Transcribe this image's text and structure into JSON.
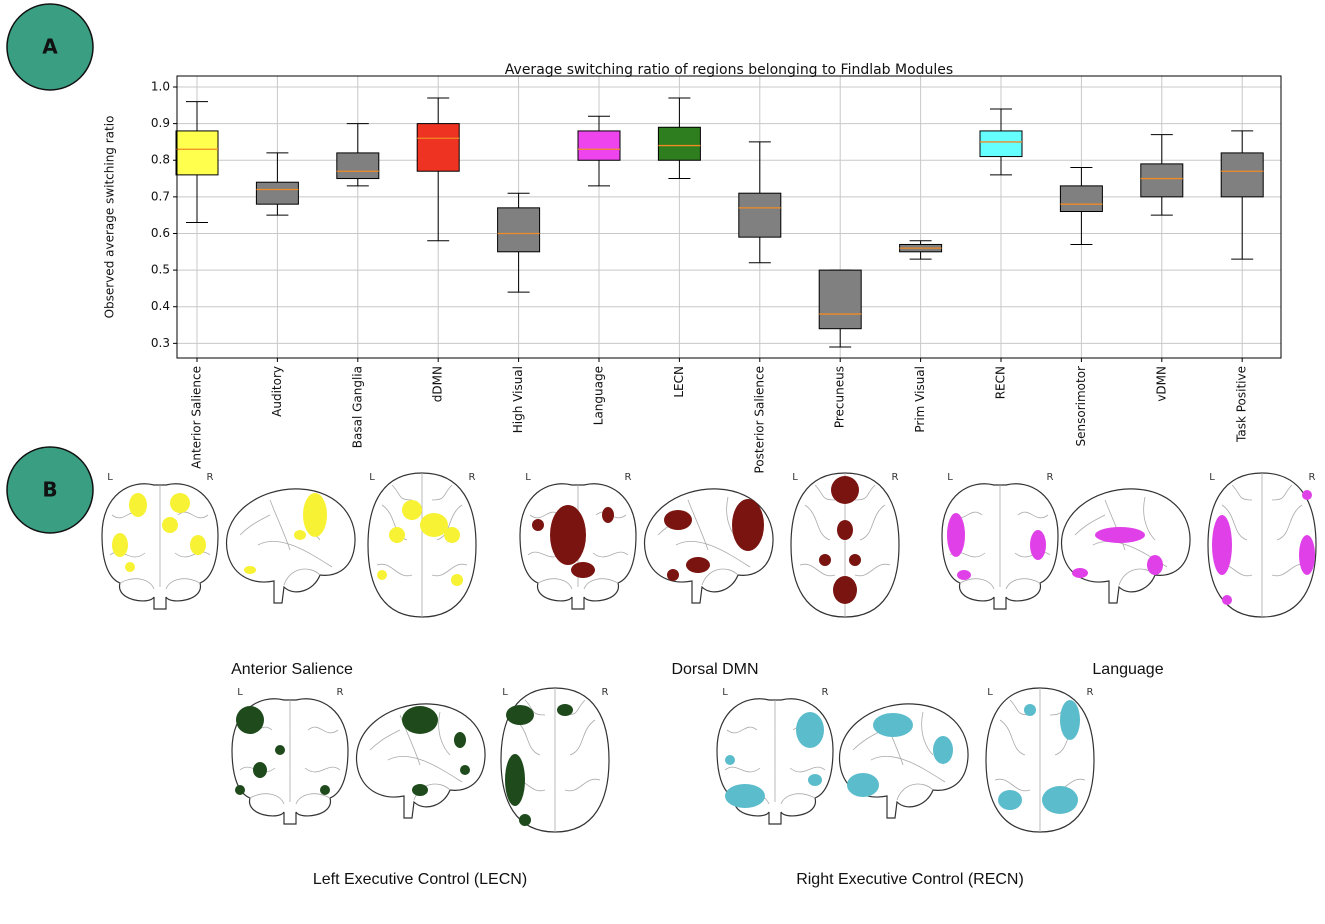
{
  "panel_labels": [
    "A",
    "B"
  ],
  "chart_data": {
    "type": "box",
    "title": "Average switching ratio of regions belonging to Findlab Modules",
    "y_label": "Observed average switching ratio",
    "categories": [
      "Anterior Salience",
      "Auditory",
      "Basal Ganglia",
      "dDMN",
      "High Visual",
      "Language",
      "LECN",
      "Posterior Salience",
      "Precuneus",
      "Prim Visual",
      "RECN",
      "Sensorimotor",
      "vDMN",
      "Task Positive"
    ],
    "low": [
      0.63,
      0.65,
      0.73,
      0.58,
      0.44,
      0.73,
      0.75,
      0.52,
      0.29,
      0.53,
      0.76,
      0.57,
      0.65,
      0.53
    ],
    "q1": [
      0.76,
      0.68,
      0.75,
      0.77,
      0.55,
      0.8,
      0.8,
      0.59,
      0.34,
      0.55,
      0.81,
      0.66,
      0.7,
      0.7
    ],
    "median": [
      0.83,
      0.72,
      0.77,
      0.86,
      0.6,
      0.83,
      0.84,
      0.67,
      0.38,
      0.56,
      0.85,
      0.68,
      0.75,
      0.77
    ],
    "q3": [
      0.88,
      0.74,
      0.82,
      0.9,
      0.67,
      0.88,
      0.89,
      0.71,
      0.5,
      0.57,
      0.88,
      0.73,
      0.79,
      0.82
    ],
    "high": [
      0.96,
      0.82,
      0.9,
      0.97,
      0.71,
      0.92,
      0.97,
      0.85,
      0.5,
      0.58,
      0.94,
      0.78,
      0.87,
      0.88
    ],
    "colors": [
      "#ffff4d",
      "#808080",
      "#808080",
      "#ee3322",
      "#808080",
      "#ee44ee",
      "#2e7d1e",
      "#808080",
      "#808080",
      "#808080",
      "#66ffff",
      "#808080",
      "#808080",
      "#808080"
    ],
    "median_color": "#f08a24",
    "ylim": [
      0.26,
      1.03
    ],
    "yticks": [
      {
        "value": 0.3,
        "label": "0.3"
      },
      {
        "value": 0.4,
        "label": "0.4"
      },
      {
        "value": 0.5,
        "label": "0.5"
      },
      {
        "value": 0.6,
        "label": "0.6"
      },
      {
        "value": 0.7,
        "label": "0.7"
      },
      {
        "value": 0.8,
        "label": "0.8"
      },
      {
        "value": 0.9,
        "label": "0.9"
      },
      {
        "value": 1.0,
        "label": "1.0"
      }
    ],
    "grid": true
  },
  "hemisphere_labels": [
    "L",
    "R"
  ],
  "brain_maps": [
    {
      "title": "Anterior Salience",
      "color": "#f7f233"
    },
    {
      "title": "Dorsal DMN",
      "color": "#7a1410"
    },
    {
      "title": "Language",
      "color": "#e040e8"
    },
    {
      "title": "Left Executive Control (LECN)",
      "color": "#1e4a1c"
    },
    {
      "title": "Right Executive Control (RECN)",
      "color": "#5bbccc"
    }
  ]
}
